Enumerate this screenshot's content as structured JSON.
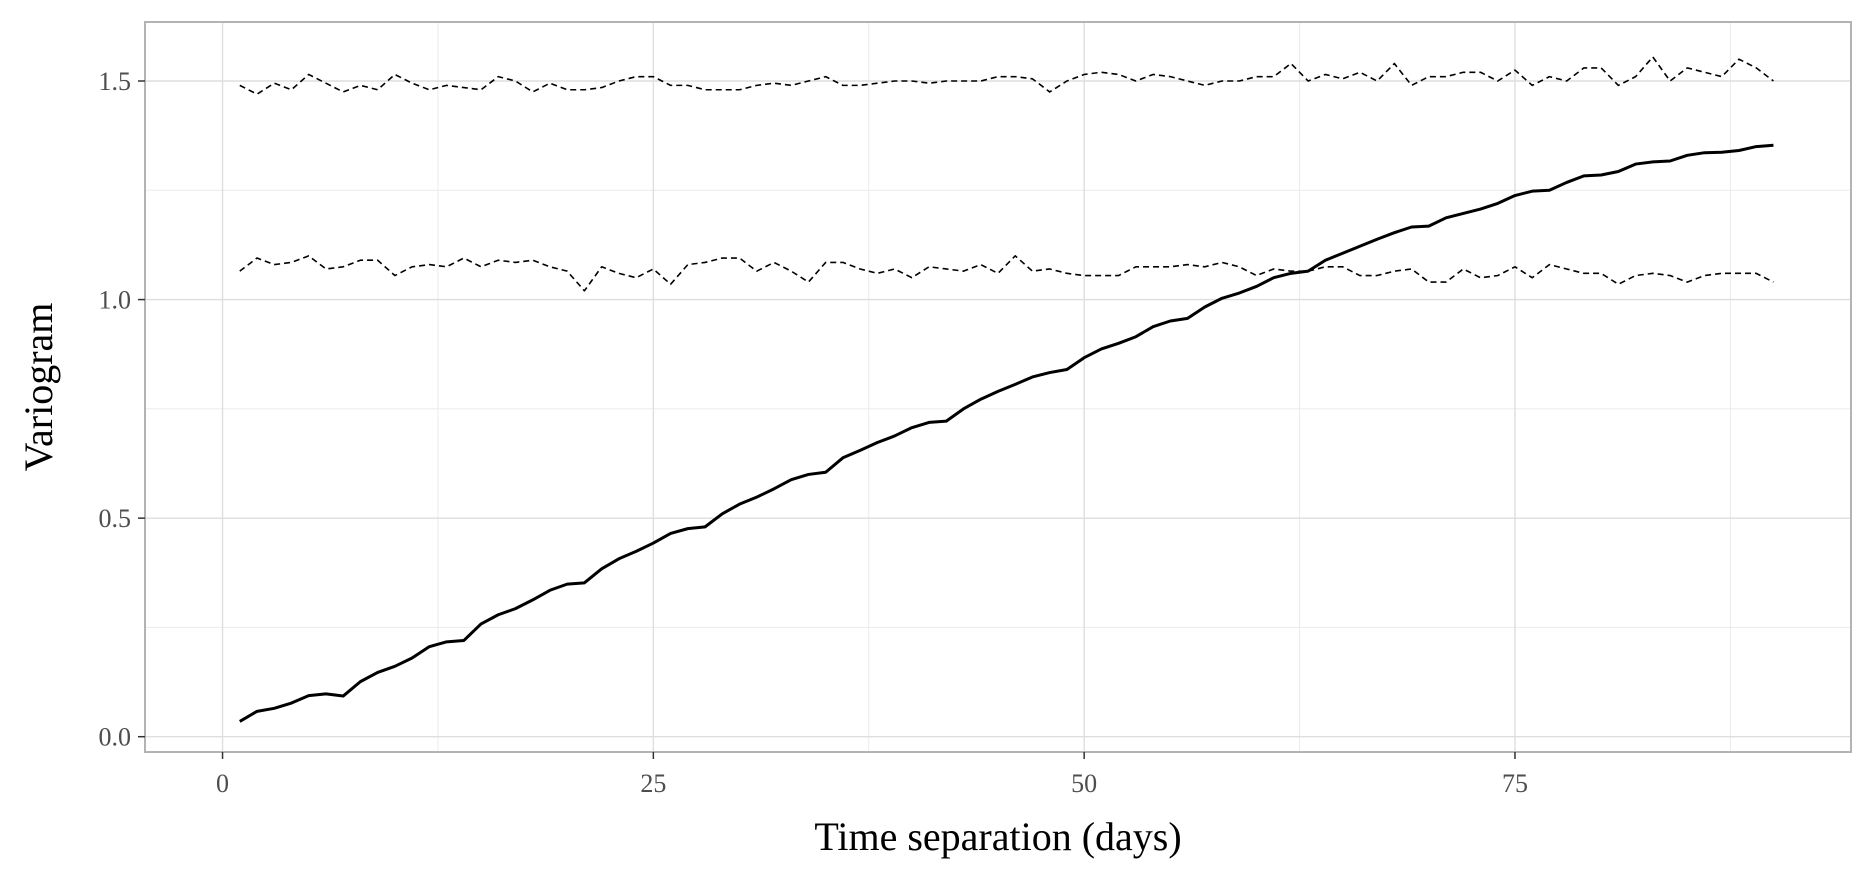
{
  "chart_data": {
    "type": "line",
    "title": "",
    "xlabel": "Time separation (days)",
    "ylabel": "Variogram",
    "xlim": [
      -4.5,
      94.5
    ],
    "ylim": [
      -0.035,
      1.635
    ],
    "x_ticks": [
      0,
      25,
      50,
      75
    ],
    "x_tick_labels": [
      "0",
      "25",
      "50",
      "75"
    ],
    "y_ticks": [
      0.0,
      0.5,
      1.0,
      1.5
    ],
    "y_tick_labels": [
      "0.0",
      "0.5",
      "1.0",
      "1.5"
    ],
    "grid": true,
    "legend": "none",
    "series": [
      {
        "style": "solid",
        "x": [
          1,
          2,
          3,
          4,
          5,
          6,
          7,
          8,
          9,
          10,
          11,
          12,
          13,
          14,
          15,
          16,
          17,
          18,
          19,
          20,
          21,
          22,
          23,
          24,
          25,
          26,
          27,
          28,
          29,
          30,
          31,
          32,
          33,
          34,
          35,
          36,
          37,
          38,
          39,
          40,
          41,
          42,
          43,
          44,
          45,
          46,
          47,
          48,
          49,
          50,
          51,
          52,
          53,
          54,
          55,
          56,
          57,
          58,
          59,
          60,
          61,
          62,
          63,
          64,
          65,
          66,
          67,
          68,
          69,
          70,
          71,
          72,
          73,
          74,
          75,
          76,
          77,
          78,
          79,
          80,
          81,
          82,
          83,
          84,
          85,
          86,
          87,
          88,
          89,
          90
        ],
        "values": [
          0.035,
          0.058,
          0.065,
          0.077,
          0.094,
          0.098,
          0.093,
          0.126,
          0.147,
          0.161,
          0.18,
          0.206,
          0.217,
          0.22,
          0.258,
          0.279,
          0.293,
          0.313,
          0.335,
          0.349,
          0.352,
          0.384,
          0.407,
          0.424,
          0.443,
          0.465,
          0.476,
          0.48,
          0.51,
          0.532,
          0.548,
          0.567,
          0.588,
          0.6,
          0.605,
          0.638,
          0.655,
          0.673,
          0.688,
          0.707,
          0.719,
          0.722,
          0.75,
          0.772,
          0.79,
          0.806,
          0.823,
          0.833,
          0.84,
          0.867,
          0.887,
          0.9,
          0.915,
          0.938,
          0.951,
          0.957,
          0.983,
          1.003,
          1.015,
          1.03,
          1.05,
          1.06,
          1.065,
          1.09,
          1.106,
          1.122,
          1.138,
          1.153,
          1.166,
          1.168,
          1.187,
          1.197,
          1.207,
          1.22,
          1.238,
          1.248,
          1.25,
          1.268,
          1.283,
          1.285,
          1.293,
          1.31,
          1.315,
          1.317,
          1.33,
          1.336,
          1.337,
          1.341,
          1.35,
          1.353
        ]
      },
      {
        "style": "dashed",
        "x": [
          1,
          2,
          3,
          4,
          5,
          6,
          7,
          8,
          9,
          10,
          11,
          12,
          13,
          14,
          15,
          16,
          17,
          18,
          19,
          20,
          21,
          22,
          23,
          24,
          25,
          26,
          27,
          28,
          29,
          30,
          31,
          32,
          33,
          34,
          35,
          36,
          37,
          38,
          39,
          40,
          41,
          42,
          43,
          44,
          45,
          46,
          47,
          48,
          49,
          50,
          51,
          52,
          53,
          54,
          55,
          56,
          57,
          58,
          59,
          60,
          61,
          62,
          63,
          64,
          65,
          66,
          67,
          68,
          69,
          70,
          71,
          72,
          73,
          74,
          75,
          76,
          77,
          78,
          79,
          80,
          81,
          82,
          83,
          84,
          85,
          86,
          87,
          88,
          89,
          90
        ],
        "values": [
          1.49,
          1.47,
          1.495,
          1.48,
          1.515,
          1.495,
          1.475,
          1.49,
          1.48,
          1.515,
          1.495,
          1.48,
          1.49,
          1.485,
          1.48,
          1.51,
          1.5,
          1.475,
          1.495,
          1.48,
          1.48,
          1.485,
          1.5,
          1.51,
          1.51,
          1.49,
          1.49,
          1.48,
          1.48,
          1.48,
          1.49,
          1.495,
          1.49,
          1.5,
          1.51,
          1.49,
          1.49,
          1.495,
          1.5,
          1.5,
          1.495,
          1.5,
          1.5,
          1.5,
          1.51,
          1.51,
          1.505,
          1.475,
          1.5,
          1.515,
          1.52,
          1.515,
          1.5,
          1.515,
          1.51,
          1.5,
          1.49,
          1.5,
          1.5,
          1.51,
          1.51,
          1.54,
          1.5,
          1.515,
          1.505,
          1.52,
          1.5,
          1.54,
          1.49,
          1.51,
          1.51,
          1.52,
          1.52,
          1.5,
          1.525,
          1.49,
          1.51,
          1.5,
          1.53,
          1.53,
          1.49,
          1.51,
          1.555,
          1.5,
          1.53,
          1.52,
          1.51,
          1.55,
          1.53,
          1.5
        ]
      },
      {
        "style": "dashed",
        "x": [
          1,
          2,
          3,
          4,
          5,
          6,
          7,
          8,
          9,
          10,
          11,
          12,
          13,
          14,
          15,
          16,
          17,
          18,
          19,
          20,
          21,
          22,
          23,
          24,
          25,
          26,
          27,
          28,
          29,
          30,
          31,
          32,
          33,
          34,
          35,
          36,
          37,
          38,
          39,
          40,
          41,
          42,
          43,
          44,
          45,
          46,
          47,
          48,
          49,
          50,
          51,
          52,
          53,
          54,
          55,
          56,
          57,
          58,
          59,
          60,
          61,
          62,
          63,
          64,
          65,
          66,
          67,
          68,
          69,
          70,
          71,
          72,
          73,
          74,
          75,
          76,
          77,
          78,
          79,
          80,
          81,
          82,
          83,
          84,
          85,
          86,
          87,
          88,
          89,
          90
        ],
        "values": [
          1.065,
          1.095,
          1.08,
          1.085,
          1.1,
          1.07,
          1.075,
          1.09,
          1.09,
          1.055,
          1.075,
          1.08,
          1.075,
          1.095,
          1.075,
          1.09,
          1.085,
          1.09,
          1.075,
          1.065,
          1.02,
          1.075,
          1.06,
          1.05,
          1.07,
          1.035,
          1.08,
          1.085,
          1.095,
          1.095,
          1.065,
          1.085,
          1.065,
          1.04,
          1.085,
          1.085,
          1.07,
          1.06,
          1.07,
          1.05,
          1.075,
          1.07,
          1.065,
          1.08,
          1.06,
          1.1,
          1.065,
          1.07,
          1.06,
          1.055,
          1.055,
          1.055,
          1.075,
          1.075,
          1.075,
          1.08,
          1.075,
          1.085,
          1.075,
          1.055,
          1.07,
          1.065,
          1.065,
          1.075,
          1.075,
          1.055,
          1.055,
          1.065,
          1.07,
          1.04,
          1.04,
          1.07,
          1.05,
          1.055,
          1.075,
          1.05,
          1.08,
          1.07,
          1.06,
          1.06,
          1.035,
          1.055,
          1.06,
          1.055,
          1.04,
          1.055,
          1.06,
          1.06,
          1.06,
          1.04
        ]
      }
    ]
  }
}
